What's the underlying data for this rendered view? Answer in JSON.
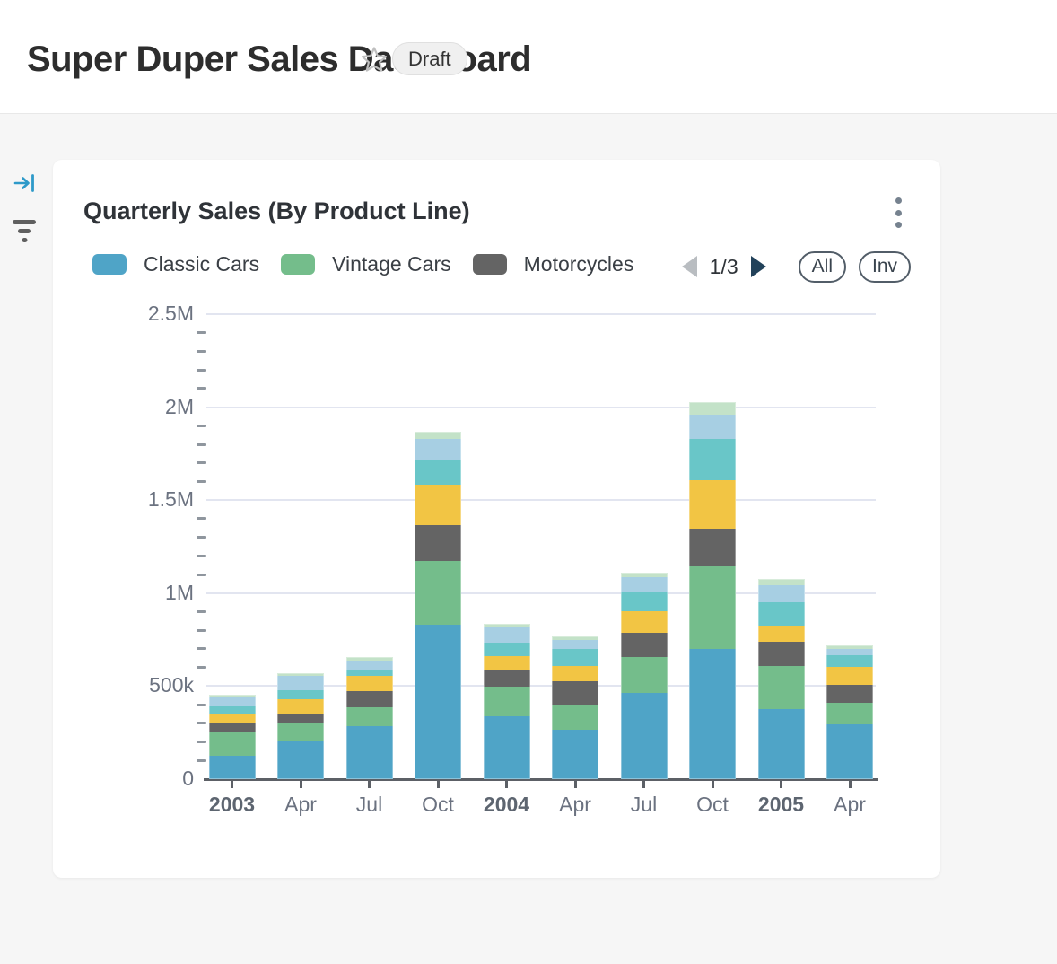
{
  "header": {
    "title": "Super Duper Sales Dashboard",
    "star_icon": "star-outline",
    "status_badge": "Draft"
  },
  "sidebar": {
    "icons": [
      {
        "name": "collapse-panel-icon",
        "color": "#2e9ac9"
      },
      {
        "name": "filter-lines-icon",
        "color": "#5f5f5f"
      }
    ]
  },
  "card": {
    "title": "Quarterly Sales (By Product Line)",
    "menu_icon": "kebab-vertical",
    "legend": [
      {
        "label": "Classic Cars",
        "color": "#4FA4C7"
      },
      {
        "label": "Vintage Cars",
        "color": "#74BD8B"
      },
      {
        "label": "Motorcycles",
        "color": "#646464"
      }
    ],
    "pagination": {
      "current": "1/3",
      "prev_enabled": false,
      "next_enabled": true
    },
    "buttons": [
      {
        "label": "All"
      },
      {
        "label": "Inv"
      }
    ]
  },
  "colors": {
    "page_background": "#f6f6f6",
    "card_background": "#ffffff",
    "gridline": "#e2e5f0",
    "axis": "#5c6066",
    "axis_label": "#6b7280"
  },
  "chart_data": {
    "type": "bar",
    "stacked": true,
    "title": "Quarterly Sales (By Product Line)",
    "categories": [
      "2003",
      "Apr",
      "Jul",
      "Oct",
      "2004",
      "Apr",
      "Jul",
      "Oct",
      "2005",
      "Apr"
    ],
    "category_bold": [
      true,
      false,
      false,
      false,
      true,
      false,
      false,
      false,
      true,
      false
    ],
    "ylim": [
      0,
      2500000
    ],
    "y_ticks": [
      {
        "value": 0,
        "label": "0"
      },
      {
        "value": 500000,
        "label": "500k"
      },
      {
        "value": 1000000,
        "label": "1M"
      },
      {
        "value": 1500000,
        "label": "1.5M"
      },
      {
        "value": 2000000,
        "label": "2M"
      },
      {
        "value": 2500000,
        "label": "2.5M"
      }
    ],
    "minor_tick_step": 100000,
    "grid": true,
    "legend_position": "top",
    "legend_pages": 3,
    "series": [
      {
        "name": "Classic Cars",
        "color": "#4FA4C7",
        "in_legend": true,
        "values": [
          127000,
          208000,
          284000,
          828000,
          337000,
          267000,
          465000,
          699000,
          377000,
          296000
        ]
      },
      {
        "name": "Vintage Cars",
        "color": "#74BD8B",
        "in_legend": true,
        "values": [
          124000,
          97000,
          101000,
          346000,
          161000,
          129000,
          193000,
          443000,
          233000,
          116000
        ]
      },
      {
        "name": "Motorcycles",
        "color": "#646464",
        "in_legend": true,
        "values": [
          48000,
          43000,
          88000,
          193000,
          88000,
          129000,
          129000,
          205000,
          129000,
          97000
        ]
      },
      {
        "name": "",
        "color": "#F2C544",
        "in_legend": false,
        "values": [
          53000,
          81000,
          81000,
          217000,
          77000,
          85000,
          117000,
          258000,
          88000,
          94000
        ]
      },
      {
        "name": "",
        "color": "#69C6C8",
        "in_legend": false,
        "values": [
          40000,
          48000,
          29000,
          129000,
          71000,
          92000,
          103000,
          226000,
          126000,
          64000
        ]
      },
      {
        "name": "",
        "color": "#A7CFE3",
        "in_legend": false,
        "values": [
          48000,
          77000,
          52000,
          117000,
          82000,
          45000,
          77000,
          129000,
          92000,
          32000
        ]
      },
      {
        "name": "",
        "color": "#C3E2C8",
        "in_legend": false,
        "values": [
          16000,
          16000,
          21000,
          39000,
          21000,
          19000,
          27000,
          65000,
          32000,
          22000
        ]
      }
    ]
  }
}
